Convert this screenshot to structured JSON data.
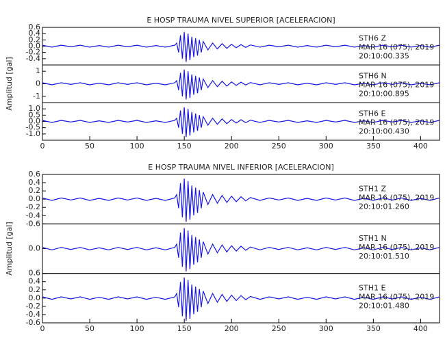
{
  "chart_data": [
    {
      "type": "line",
      "title": "E HOSP TRAUMA NIVEL SUPERIOR [ACELERACION]",
      "ylabel": "Amplitud [gal]",
      "color": "#1414e6",
      "xlim": [
        0,
        420
      ],
      "xticks": [
        0,
        50,
        100,
        150,
        200,
        250,
        300,
        350,
        400
      ],
      "x": [
        0,
        10,
        20,
        30,
        40,
        50,
        60,
        70,
        80,
        90,
        100,
        110,
        120,
        130,
        140,
        142,
        144,
        146,
        148,
        150,
        152,
        154,
        156,
        158,
        160,
        162,
        164,
        166,
        168,
        170,
        175,
        180,
        185,
        190,
        195,
        200,
        205,
        210,
        215,
        220,
        230,
        240,
        250,
        260,
        270,
        280,
        290,
        300,
        310,
        320,
        330,
        340,
        350,
        360,
        370,
        380,
        390,
        400,
        410,
        420
      ],
      "panels": [
        {
          "station": "STH6   Z",
          "date": "MAR 16 (075), 2019",
          "time": "20:10:00.335",
          "ylim": [
            -0.6,
            0.6
          ],
          "yticks": [
            -0.4,
            -0.2,
            {
              "value": 0,
              "label": "0.0"
            },
            0.2,
            0.4,
            0.6
          ],
          "values": [
            0.03,
            -0.03,
            0.03,
            -0.02,
            0.03,
            -0.03,
            0.02,
            -0.03,
            0.03,
            -0.02,
            0.03,
            -0.03,
            0.02,
            -0.03,
            0.03,
            0.1,
            -0.2,
            0.35,
            -0.4,
            0.45,
            -0.5,
            0.4,
            -0.45,
            0.3,
            -0.35,
            0.25,
            -0.3,
            0.2,
            -0.2,
            0.15,
            -0.12,
            0.1,
            -0.09,
            0.08,
            -0.07,
            0.06,
            -0.05,
            0.05,
            -0.04,
            0.04,
            -0.03,
            0.03,
            -0.02,
            0.03,
            -0.03,
            0.02,
            -0.03,
            0.03,
            -0.02,
            0.03,
            -0.03,
            0.02,
            -0.03,
            0.03,
            -0.02,
            0.03,
            -0.03,
            0.02,
            -0.03,
            0.03
          ]
        },
        {
          "station": "STH6   N",
          "date": "MAR 16 (075), 2019",
          "time": "20:10:00.895",
          "ylim": [
            -1.5,
            1.5
          ],
          "yticks": [
            -1,
            0,
            1
          ],
          "values": [
            0.08,
            -0.08,
            0.08,
            -0.05,
            0.08,
            -0.08,
            0.05,
            -0.08,
            0.08,
            -0.05,
            0.08,
            -0.08,
            0.05,
            -0.08,
            0.08,
            0.25,
            -0.5,
            0.88,
            -1.0,
            1.13,
            -1.25,
            1.0,
            -1.13,
            0.75,
            -0.88,
            0.63,
            -0.75,
            0.5,
            -0.5,
            0.38,
            -0.3,
            0.25,
            -0.23,
            0.2,
            -0.18,
            0.15,
            -0.13,
            0.13,
            -0.1,
            0.1,
            -0.08,
            0.08,
            -0.05,
            0.08,
            -0.08,
            0.05,
            -0.08,
            0.08,
            -0.05,
            0.08,
            -0.08,
            0.05,
            -0.08,
            0.08,
            -0.05,
            0.08,
            -0.08,
            0.05,
            -0.08,
            0.08
          ]
        },
        {
          "station": "STH6   E",
          "date": "MAR 16 (075), 2019",
          "time": "20:10:00.430",
          "ylim": [
            -1.5,
            1.5
          ],
          "yticks": [
            {
              "value": -1,
              "label": "-1.0"
            },
            -0.5,
            {
              "value": 0,
              "label": "0.0"
            },
            0.5,
            {
              "value": 1,
              "label": "1.0"
            }
          ],
          "values": [
            0.08,
            -0.08,
            0.08,
            -0.05,
            0.08,
            -0.08,
            0.05,
            -0.08,
            0.08,
            -0.05,
            0.08,
            -0.08,
            0.05,
            -0.08,
            0.08,
            0.25,
            -0.5,
            0.88,
            -1.0,
            1.13,
            -1.25,
            1.0,
            -1.13,
            0.75,
            -0.88,
            0.63,
            -0.75,
            0.5,
            -0.5,
            0.38,
            -0.3,
            0.25,
            -0.23,
            0.2,
            -0.18,
            0.15,
            -0.13,
            0.13,
            -0.1,
            0.1,
            -0.08,
            0.08,
            -0.05,
            0.08,
            -0.08,
            0.05,
            -0.08,
            0.08,
            -0.05,
            0.08,
            -0.08,
            0.05,
            -0.08,
            0.08,
            -0.05,
            0.08,
            -0.08,
            0.05,
            -0.08,
            0.08
          ]
        }
      ]
    },
    {
      "type": "line",
      "title": "E HOSP TRAUMA NIVEL INFERIOR [ACELERACION]",
      "ylabel": "Amplitud [gal]",
      "color": "#1414e6",
      "xlim": [
        0,
        420
      ],
      "xticks": [
        0,
        50,
        100,
        150,
        200,
        250,
        300,
        350,
        400
      ],
      "x": [
        0,
        10,
        20,
        30,
        40,
        50,
        60,
        70,
        80,
        90,
        100,
        110,
        120,
        130,
        140,
        142,
        144,
        146,
        148,
        150,
        152,
        154,
        156,
        158,
        160,
        162,
        164,
        166,
        168,
        170,
        175,
        180,
        185,
        190,
        195,
        200,
        205,
        210,
        215,
        220,
        230,
        240,
        250,
        260,
        270,
        280,
        290,
        300,
        310,
        320,
        330,
        340,
        350,
        360,
        370,
        380,
        390,
        400,
        410,
        420
      ],
      "panels": [
        {
          "station": "STH1   Z",
          "date": "MAR 16 (075), 2019",
          "time": "20:10:01.260",
          "ylim": [
            -0.6,
            0.6
          ],
          "yticks": [
            -0.6,
            -0.4,
            -0.2,
            {
              "value": 0,
              "label": "0.0"
            },
            0.2,
            0.4,
            0.6
          ],
          "values": [
            0.03,
            -0.03,
            0.03,
            -0.02,
            0.03,
            -0.03,
            0.02,
            -0.03,
            0.03,
            -0.02,
            0.03,
            -0.03,
            0.02,
            -0.03,
            0.03,
            0.11,
            -0.22,
            0.39,
            -0.44,
            0.5,
            -0.55,
            0.44,
            -0.5,
            0.33,
            -0.39,
            0.28,
            -0.33,
            0.22,
            -0.22,
            0.17,
            -0.13,
            0.11,
            -0.1,
            0.09,
            -0.08,
            0.07,
            -0.06,
            0.06,
            -0.04,
            0.04,
            -0.03,
            0.03,
            -0.02,
            0.03,
            -0.03,
            0.02,
            -0.03,
            0.03,
            -0.02,
            0.03,
            -0.03,
            0.02,
            -0.03,
            0.03,
            -0.02,
            0.03,
            -0.03,
            0.02,
            -0.03,
            0.03
          ]
        },
        {
          "station": "STH1   N",
          "date": "MAR 16 (075), 2019",
          "time": "20:10:01.510",
          "ylim": [
            -0.6,
            0.6
          ],
          "yticks": [
            {
              "value": 0,
              "label": "0.0"
            }
          ],
          "values": [
            0.03,
            -0.03,
            0.03,
            -0.02,
            0.03,
            -0.03,
            0.02,
            -0.03,
            0.03,
            -0.02,
            0.03,
            -0.03,
            0.02,
            -0.03,
            0.03,
            0.11,
            -0.22,
            0.39,
            -0.44,
            0.5,
            -0.55,
            0.44,
            -0.5,
            0.33,
            -0.39,
            0.28,
            -0.33,
            0.22,
            -0.22,
            0.17,
            -0.13,
            0.11,
            -0.1,
            0.09,
            -0.08,
            0.07,
            -0.06,
            0.06,
            -0.04,
            0.04,
            -0.03,
            0.03,
            -0.02,
            0.03,
            -0.03,
            0.02,
            -0.03,
            0.03,
            -0.02,
            0.03,
            -0.03,
            0.02,
            -0.03,
            0.03,
            -0.02,
            0.03,
            -0.03,
            0.02,
            -0.03,
            0.03
          ]
        },
        {
          "station": "STH1   E",
          "date": "MAR 16 (075), 2019",
          "time": "20:10:01.480",
          "ylim": [
            -0.6,
            0.6
          ],
          "yticks": [
            -0.6,
            -0.4,
            -0.2,
            {
              "value": 0,
              "label": "0.0"
            },
            0.2,
            0.4,
            0.6
          ],
          "values": [
            0.03,
            -0.03,
            0.03,
            -0.02,
            0.03,
            -0.03,
            0.02,
            -0.03,
            0.03,
            -0.02,
            0.03,
            -0.03,
            0.02,
            -0.03,
            0.03,
            0.11,
            -0.22,
            0.39,
            -0.44,
            0.5,
            -0.55,
            0.44,
            -0.5,
            0.33,
            -0.39,
            0.28,
            -0.33,
            0.22,
            -0.22,
            0.17,
            -0.13,
            0.11,
            -0.1,
            0.09,
            -0.08,
            0.07,
            -0.06,
            0.06,
            -0.04,
            0.04,
            -0.03,
            0.03,
            -0.02,
            0.03,
            -0.03,
            0.02,
            -0.03,
            0.03,
            -0.02,
            0.03,
            -0.03,
            0.02,
            -0.03,
            0.03,
            -0.02,
            0.03,
            -0.03,
            0.02,
            -0.03,
            0.03
          ]
        }
      ]
    }
  ]
}
